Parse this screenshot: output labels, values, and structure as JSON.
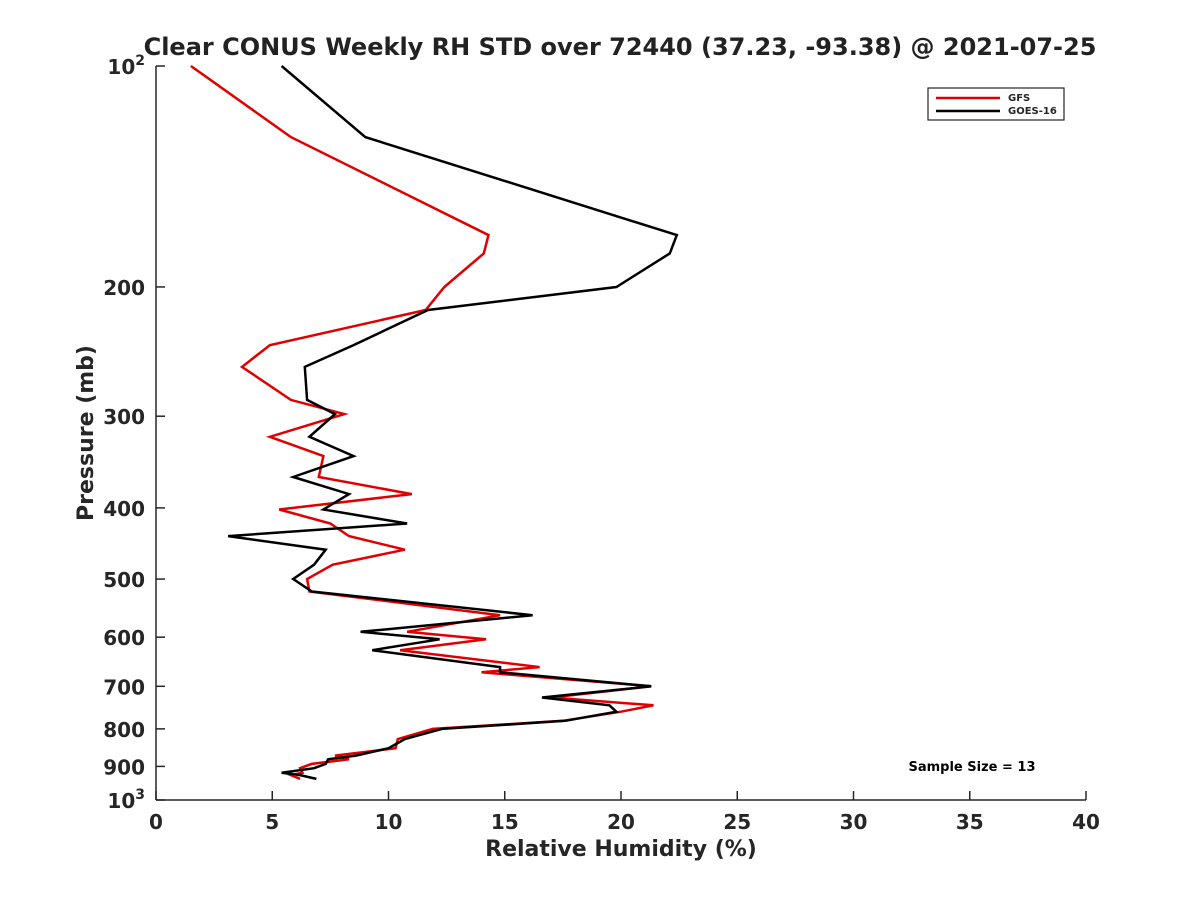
{
  "chart_data": {
    "type": "line",
    "title": "Clear CONUS Weekly RH STD over 72440 (37.23, -93.38) @ 2021-07-25",
    "xlabel": "Relative Humidity (%)",
    "ylabel": "Pressure (mb)",
    "xlim": [
      0,
      40
    ],
    "ylim": [
      100,
      1000
    ],
    "y_scale": "log",
    "y_reversed": true,
    "x_ticks": [
      0,
      5,
      10,
      15,
      20,
      25,
      30,
      35,
      40
    ],
    "x_tick_labels": [
      "0",
      "5",
      "10",
      "15",
      "20",
      "25",
      "30",
      "35",
      "40"
    ],
    "y_ticks": [
      100,
      200,
      300,
      400,
      500,
      600,
      700,
      800,
      900,
      1000
    ],
    "y_tick_labels": [
      {
        "base": "10",
        "exp": "2"
      },
      {
        "base": "200",
        "exp": ""
      },
      {
        "base": "300",
        "exp": ""
      },
      {
        "base": "400",
        "exp": ""
      },
      {
        "base": "500",
        "exp": ""
      },
      {
        "base": "600",
        "exp": ""
      },
      {
        "base": "700",
        "exp": ""
      },
      {
        "base": "800",
        "exp": ""
      },
      {
        "base": "900",
        "exp": ""
      },
      {
        "base": "10",
        "exp": "3"
      }
    ],
    "grid": false,
    "legend_position": "top-right",
    "annotation": "Sample Size = 13",
    "series": [
      {
        "name": "GFS",
        "color": "#e00000",
        "points": [
          [
            1.5,
            100
          ],
          [
            5.8,
            125
          ],
          [
            14.3,
            170
          ],
          [
            14.1,
            180
          ],
          [
            12.4,
            200
          ],
          [
            11.6,
            215
          ],
          [
            4.9,
            240
          ],
          [
            3.7,
            257
          ],
          [
            5.8,
            285
          ],
          [
            8.1,
            298
          ],
          [
            4.9,
            320
          ],
          [
            7.2,
            340
          ],
          [
            7.0,
            363
          ],
          [
            11.0,
            383
          ],
          [
            5.3,
            402
          ],
          [
            7.5,
            420
          ],
          [
            8.3,
            437
          ],
          [
            10.7,
            456
          ],
          [
            7.6,
            478
          ],
          [
            6.5,
            500
          ],
          [
            6.6,
            520
          ],
          [
            14.8,
            560
          ],
          [
            10.8,
            590
          ],
          [
            14.2,
            604
          ],
          [
            10.5,
            625
          ],
          [
            16.5,
            659
          ],
          [
            14.0,
            670
          ],
          [
            21.3,
            700
          ],
          [
            17.0,
            725
          ],
          [
            21.4,
            743
          ],
          [
            20.0,
            758
          ],
          [
            17.5,
            780
          ],
          [
            11.9,
            800
          ],
          [
            10.4,
            826
          ],
          [
            10.3,
            850
          ],
          [
            7.7,
            870
          ],
          [
            8.3,
            880
          ],
          [
            6.7,
            893
          ],
          [
            6.2,
            905
          ],
          [
            6.3,
            918
          ],
          [
            5.8,
            925
          ],
          [
            6.2,
            936
          ]
        ]
      },
      {
        "name": "GOES-16",
        "color": "#000000",
        "points": [
          [
            5.4,
            100
          ],
          [
            9.0,
            125
          ],
          [
            22.4,
            170
          ],
          [
            22.1,
            180
          ],
          [
            19.8,
            200
          ],
          [
            11.7,
            215
          ],
          [
            8.5,
            240
          ],
          [
            6.4,
            257
          ],
          [
            6.5,
            285
          ],
          [
            7.7,
            298
          ],
          [
            6.6,
            320
          ],
          [
            8.5,
            340
          ],
          [
            5.9,
            363
          ],
          [
            8.3,
            383
          ],
          [
            7.2,
            402
          ],
          [
            10.8,
            420
          ],
          [
            3.1,
            437
          ],
          [
            7.3,
            456
          ],
          [
            6.8,
            478
          ],
          [
            5.9,
            500
          ],
          [
            6.7,
            520
          ],
          [
            16.2,
            560
          ],
          [
            8.8,
            590
          ],
          [
            12.2,
            604
          ],
          [
            9.3,
            625
          ],
          [
            14.8,
            659
          ],
          [
            14.8,
            670
          ],
          [
            21.3,
            700
          ],
          [
            16.6,
            725
          ],
          [
            19.5,
            743
          ],
          [
            19.8,
            758
          ],
          [
            17.6,
            780
          ],
          [
            12.3,
            800
          ],
          [
            10.7,
            826
          ],
          [
            10.0,
            850
          ],
          [
            8.6,
            870
          ],
          [
            7.4,
            880
          ],
          [
            7.3,
            893
          ],
          [
            6.8,
            905
          ],
          [
            5.4,
            918
          ],
          [
            6.2,
            925
          ],
          [
            6.9,
            936
          ]
        ]
      }
    ]
  }
}
